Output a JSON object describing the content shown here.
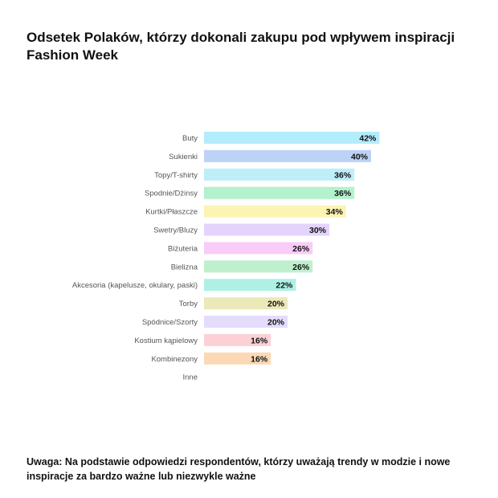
{
  "title": "Odsetek Polaków, którzy dokonali zakupu pod wpływem inspiracji Fashion Week",
  "note": "Uwaga: Na podstawie odpowiedzi respondentów, którzy uważają trendy w modzie i nowe inspiracje za bardzo ważne lub niezwykle ważne",
  "chart_data": {
    "type": "bar",
    "orientation": "horizontal",
    "title": "Odsetek Polaków, którzy dokonali zakupu pod wpływem inspiracji Fashion Week",
    "categories": [
      "Buty",
      "Sukienki",
      "Topy/T-shirty",
      "Spodnie/Dżinsy",
      "Kurtki/Płaszcze",
      "Swetry/Bluzy",
      "Biżuteria",
      "Bielizna",
      "Akcesoria (kapelusze, okulary, paski)",
      "Torby",
      "Spódnice/Szorty",
      "Kostium kąpielowy",
      "Kombinezony",
      "Inne"
    ],
    "values": [
      42,
      40,
      36,
      36,
      34,
      30,
      26,
      26,
      22,
      20,
      20,
      16,
      16,
      null
    ],
    "value_labels": [
      "42%",
      "40%",
      "36%",
      "36%",
      "34%",
      "30%",
      "26%",
      "26%",
      "22%",
      "20%",
      "20%",
      "16%",
      "16%",
      ""
    ],
    "colors": [
      "#b3ecfb",
      "#bcd2f7",
      "#bdeefa",
      "#b4f1cd",
      "#fbf4b3",
      "#e4d3fb",
      "#f8ccf7",
      "#bff0cd",
      "#aef1e4",
      "#ebe9b9",
      "#e3dcfb",
      "#fbd1d6",
      "#fbd9b6",
      "#e0e0e0"
    ],
    "xlim": [
      0,
      100
    ],
    "grid": false,
    "legend": "none"
  }
}
